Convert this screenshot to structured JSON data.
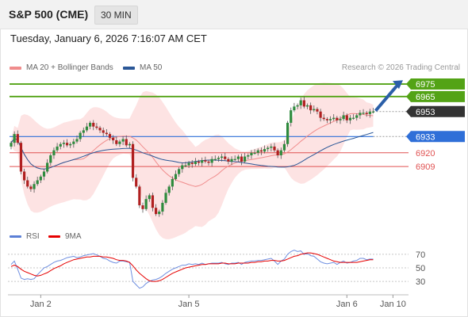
{
  "header": {
    "title": "S&P 500 (CME)",
    "timeframe": "30 MIN"
  },
  "datetime": "Tuesday, January 6, 2026 7:16:07 AM CET",
  "legend": {
    "ma20": {
      "label": "MA 20 + Bollinger Bands",
      "color": "#f08c8c"
    },
    "ma50": {
      "label": "MA 50",
      "color": "#2b5797"
    }
  },
  "credit": "Research © 2026 Trading Central",
  "rsi_legend": {
    "rsi": {
      "label": "RSI",
      "color": "#5b7fd6"
    },
    "ma9": {
      "label": "9MA",
      "color": "#e60000"
    }
  },
  "chart_data": {
    "type": "candlestick",
    "price_range": [
      6866,
      6982
    ],
    "levels": [
      {
        "label": "6975",
        "value": 6975,
        "kind": "resistance",
        "color": "#53a316"
      },
      {
        "label": "6965",
        "value": 6965,
        "kind": "resistance",
        "color": "#53a316"
      },
      {
        "label": "6953",
        "value": 6953,
        "kind": "last",
        "color": "#333333"
      },
      {
        "label": "6933",
        "value": 6933,
        "kind": "pivot",
        "color": "#2f6fd8"
      },
      {
        "label": "6920",
        "value": 6920,
        "kind": "support",
        "color": "#e05252"
      },
      {
        "label": "6909",
        "value": 6909,
        "kind": "support",
        "color": "#e05252"
      }
    ],
    "rsi_axis": [
      "70",
      "50",
      "30"
    ],
    "rsi_range": [
      15,
      85
    ],
    "x_labels": [
      {
        "label": "Jan 2",
        "index": 9
      },
      {
        "label": "Jan 5",
        "index": 54
      },
      {
        "label": "Jan 6",
        "index": 102
      },
      {
        "label": "Jan 10",
        "index": 116
      }
    ],
    "closes": [
      6928,
      6935,
      6928,
      6905,
      6898,
      6893,
      6891,
      6895,
      6898,
      6901,
      6905,
      6912,
      6918,
      6922,
      6925,
      6927,
      6928,
      6926,
      6927,
      6929,
      6931,
      6936,
      6938,
      6941,
      6944,
      6941,
      6940,
      6938,
      6936,
      6935,
      6932,
      6930,
      6927,
      6929,
      6931,
      6926,
      6927,
      6900,
      6893,
      6878,
      6875,
      6883,
      6886,
      6876,
      6871,
      6873,
      6880,
      6888,
      6893,
      6899,
      6903,
      6907,
      6910,
      6910,
      6912,
      6911,
      6913,
      6912,
      6914,
      6913,
      6912,
      6915,
      6915,
      6916,
      6917,
      6915,
      6913,
      6915,
      6915,
      6917,
      6913,
      6917,
      6918,
      6920,
      6920,
      6922,
      6921,
      6923,
      6924,
      6925,
      6922,
      6918,
      6922,
      6927,
      6944,
      6954,
      6957,
      6958,
      6962,
      6957,
      6958,
      6954,
      6955,
      6953,
      6948,
      6947,
      6946,
      6947,
      6948,
      6946,
      6947,
      6950,
      6946,
      6948,
      6948,
      6950,
      6952,
      6952,
      6951,
      6953,
      6953
    ],
    "rsi": [
      55,
      60,
      48,
      35,
      33,
      34,
      33,
      34,
      40,
      45,
      50,
      52,
      55,
      58,
      60,
      61,
      63,
      65,
      66,
      67,
      65,
      66,
      68,
      69,
      70,
      71,
      69,
      67,
      64,
      63,
      60,
      58,
      57,
      60,
      60,
      59,
      58,
      30,
      25,
      20,
      22,
      27,
      30,
      32,
      33,
      35,
      38,
      42,
      45,
      48,
      50,
      52,
      54,
      54,
      56,
      55,
      56,
      55,
      57,
      55,
      56,
      57,
      57,
      57,
      58,
      56,
      55,
      57,
      57,
      58,
      55,
      58,
      59,
      60,
      60,
      61,
      61,
      62,
      63,
      64,
      60,
      55,
      60,
      63,
      70,
      74,
      76,
      74,
      75,
      70,
      71,
      68,
      67,
      63,
      59,
      57,
      56,
      57,
      58,
      55,
      58,
      60,
      57,
      58,
      60,
      61,
      64,
      64,
      62,
      63,
      63
    ],
    "rsi_ma": [
      52,
      54,
      52,
      48,
      45,
      43,
      41,
      39,
      38,
      39,
      41,
      43,
      46,
      49,
      51,
      53,
      56,
      58,
      60,
      62,
      63,
      64,
      65,
      66,
      66,
      67,
      67,
      67,
      66,
      66,
      65,
      64,
      62,
      61,
      61,
      60,
      58,
      53,
      47,
      42,
      38,
      34,
      31,
      30,
      30,
      31,
      33,
      36,
      39,
      42,
      44,
      46,
      48,
      50,
      51,
      52,
      53,
      54,
      55,
      55,
      56,
      56,
      56,
      56,
      57,
      57,
      56,
      56,
      56,
      57,
      57,
      57,
      57,
      58,
      58,
      59,
      59,
      60,
      60,
      61,
      61,
      60,
      60,
      61,
      63,
      65,
      67,
      68,
      70,
      71,
      72,
      72,
      71,
      70,
      68,
      66,
      64,
      62,
      60,
      59,
      58,
      58,
      58,
      58,
      58,
      58,
      59,
      60,
      61,
      62,
      62
    ]
  }
}
